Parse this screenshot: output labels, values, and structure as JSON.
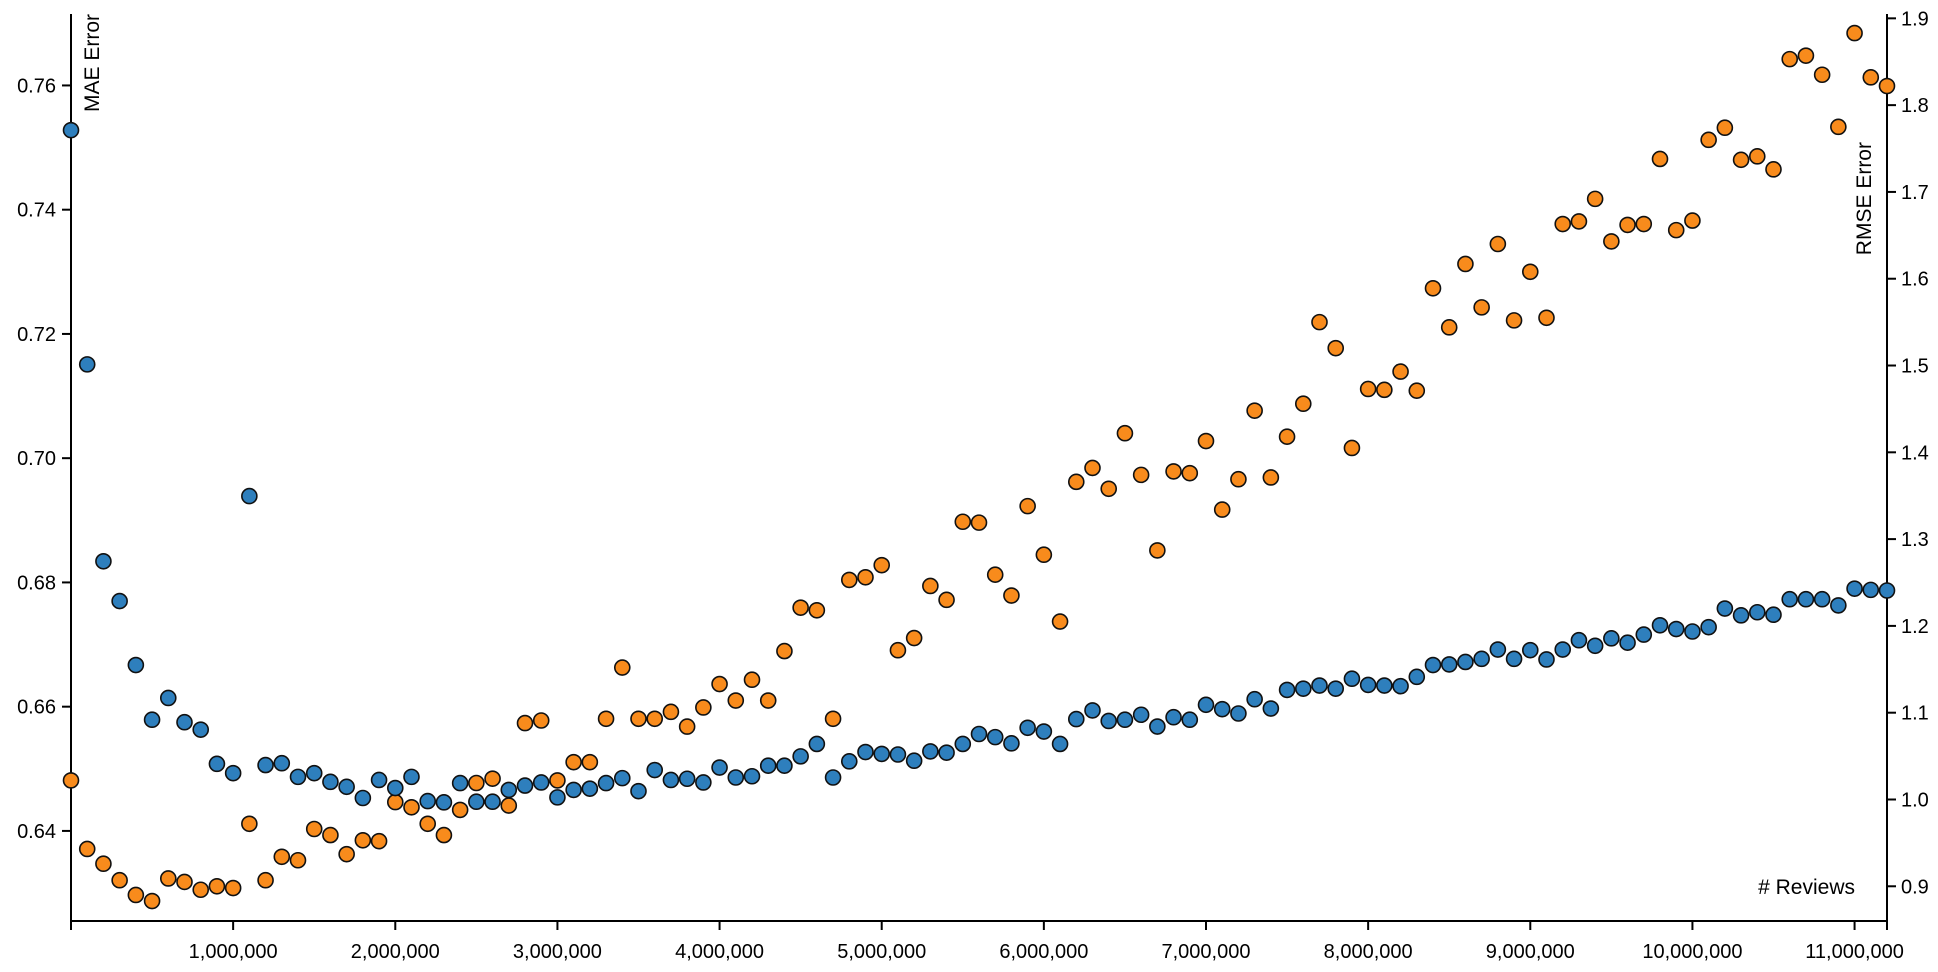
{
  "chart_data": {
    "type": "scatter",
    "xlabel": "# Reviews",
    "x_tick_labels": [
      "1,000,000",
      "2,000,000",
      "3,000,000",
      "4,000,000",
      "5,000,000",
      "6,000,000",
      "7,000,000",
      "8,000,000",
      "9,000,000",
      "10,000,000",
      "11,000,000"
    ],
    "x_ticks": [
      1000000,
      2000000,
      3000000,
      4000000,
      5000000,
      6000000,
      7000000,
      8000000,
      9000000,
      10000000,
      11000000
    ],
    "xlim": [
      0,
      11200000
    ],
    "y_left": {
      "label": "MAE Error",
      "lim": [
        0.6255,
        0.7715
      ],
      "ticks": [
        0.64,
        0.66,
        0.68,
        0.7,
        0.72,
        0.74,
        0.76
      ],
      "tick_labels": [
        "0.64",
        "0.66",
        "0.68",
        "0.70",
        "0.72",
        "0.74",
        "0.76"
      ]
    },
    "y_right": {
      "label": "RMSE Error",
      "lim": [
        0.86,
        1.905
      ],
      "ticks": [
        0.9,
        1.0,
        1.1,
        1.2,
        1.3,
        1.4,
        1.5,
        1.6,
        1.7,
        1.8,
        1.9
      ],
      "tick_labels": [
        "0.9",
        "1.0",
        "1.1",
        "1.2",
        "1.3",
        "1.4",
        "1.5",
        "1.6",
        "1.7",
        "1.8",
        "1.9"
      ]
    },
    "colors": {
      "mae": "#2e7fbd",
      "rmse": "#f88b1c"
    },
    "series": [
      {
        "key": "mae",
        "axis": "left",
        "x": [
          0,
          100000,
          200000,
          300000,
          400000,
          500000,
          600000,
          700000,
          800000,
          900000,
          1000000,
          1100000,
          1200000,
          1300000,
          1400000,
          1500000,
          1600000,
          1700000,
          1800000,
          1900000,
          2000000,
          2100000,
          2200000,
          2300000,
          2400000,
          2500000,
          2600000,
          2700000,
          2800000,
          2900000,
          3000000,
          3100000,
          3200000,
          3300000,
          3400000,
          3500000,
          3600000,
          3700000,
          3800000,
          3900000,
          4000000,
          4100000,
          4200000,
          4300000,
          4400000,
          4500000,
          4600000,
          4700000,
          4800000,
          4900000,
          5000000,
          5100000,
          5200000,
          5300000,
          5400000,
          5500000,
          5600000,
          5700000,
          5800000,
          5900000,
          6000000,
          6100000,
          6200000,
          6300000,
          6400000,
          6500000,
          6600000,
          6700000,
          6800000,
          6900000,
          7000000,
          7100000,
          7200000,
          7300000,
          7400000,
          7500000,
          7600000,
          7700000,
          7800000,
          7900000,
          8000000,
          8100000,
          8200000,
          8300000,
          8400000,
          8500000,
          8600000,
          8700000,
          8800000,
          8900000,
          9000000,
          9100000,
          9200000,
          9300000,
          9400000,
          9500000,
          9600000,
          9700000,
          9800000,
          9900000,
          10000000,
          10100000,
          10200000,
          10300000,
          10400000,
          10500000,
          10600000,
          10700000,
          10800000,
          10900000,
          11000000,
          11100000,
          11200000
        ],
        "y": [
          0.7528,
          0.7151,
          0.6834,
          0.677,
          0.6667,
          0.6579,
          0.6614,
          0.6575,
          0.6563,
          0.6508,
          0.6493,
          0.6939,
          0.6506,
          0.6509,
          0.6487,
          0.6493,
          0.6479,
          0.6471,
          0.6453,
          0.6482,
          0.6469,
          0.6487,
          0.6448,
          0.6446,
          0.6477,
          0.6447,
          0.6447,
          0.6466,
          0.6473,
          0.6478,
          0.6454,
          0.6466,
          0.6468,
          0.6477,
          0.6485,
          0.6464,
          0.6498,
          0.6482,
          0.6484,
          0.6478,
          0.6502,
          0.6486,
          0.6488,
          0.6505,
          0.6505,
          0.652,
          0.654,
          0.6486,
          0.6512,
          0.6527,
          0.6524,
          0.6523,
          0.6513,
          0.6528,
          0.6526,
          0.654,
          0.6556,
          0.6551,
          0.6541,
          0.6566,
          0.656,
          0.654,
          0.658,
          0.6594,
          0.6577,
          0.6579,
          0.6587,
          0.6568,
          0.6583,
          0.6579,
          0.6603,
          0.6596,
          0.6589,
          0.6612,
          0.6597,
          0.6627,
          0.6629,
          0.6634,
          0.6629,
          0.6645,
          0.6635,
          0.6634,
          0.6633,
          0.6648,
          0.6667,
          0.6668,
          0.6672,
          0.6677,
          0.6692,
          0.6677,
          0.6691,
          0.6676,
          0.6692,
          0.6707,
          0.6698,
          0.671,
          0.6703,
          0.6716,
          0.6731,
          0.6725,
          0.6721,
          0.6728,
          0.6758,
          0.6747,
          0.6752,
          0.6748,
          0.6773,
          0.6773,
          0.6773,
          0.6763,
          0.679,
          0.6788,
          0.6787
        ]
      },
      {
        "key": "rmse",
        "axis": "right",
        "x": [
          0,
          100000,
          200000,
          300000,
          400000,
          500000,
          600000,
          700000,
          800000,
          900000,
          1000000,
          1100000,
          1200000,
          1300000,
          1400000,
          1500000,
          1600000,
          1700000,
          1800000,
          1900000,
          2000000,
          2100000,
          2200000,
          2300000,
          2400000,
          2500000,
          2600000,
          2700000,
          2800000,
          2900000,
          3000000,
          3100000,
          3200000,
          3300000,
          3400000,
          3500000,
          3600000,
          3700000,
          3800000,
          3900000,
          4000000,
          4100000,
          4200000,
          4300000,
          4400000,
          4500000,
          4600000,
          4700000,
          4800000,
          4900000,
          5000000,
          5100000,
          5200000,
          5300000,
          5400000,
          5500000,
          5600000,
          5700000,
          5800000,
          5900000,
          6000000,
          6100000,
          6200000,
          6300000,
          6400000,
          6500000,
          6600000,
          6700000,
          6800000,
          6900000,
          7000000,
          7100000,
          7200000,
          7300000,
          7400000,
          7500000,
          7600000,
          7700000,
          7800000,
          7900000,
          8000000,
          8100000,
          8200000,
          8300000,
          8400000,
          8500000,
          8600000,
          8700000,
          8800000,
          8900000,
          9000000,
          9100000,
          9200000,
          9300000,
          9400000,
          9500000,
          9600000,
          9700000,
          9800000,
          9900000,
          10000000,
          10100000,
          10200000,
          10300000,
          10400000,
          10500000,
          10600000,
          10700000,
          10800000,
          10900000,
          11000000,
          11100000,
          11200000
        ],
        "y": [
          1.022,
          0.943,
          0.926,
          0.907,
          0.89,
          0.883,
          0.909,
          0.905,
          0.896,
          0.9,
          0.898,
          0.972,
          0.907,
          0.934,
          0.93,
          0.966,
          0.959,
          0.937,
          0.953,
          0.952,
          0.997,
          0.991,
          0.972,
          0.959,
          0.988,
          1.019,
          1.024,
          0.993,
          1.088,
          1.091,
          1.022,
          1.043,
          1.043,
          1.093,
          1.152,
          1.093,
          1.093,
          1.101,
          1.084,
          1.106,
          1.133,
          1.114,
          1.138,
          1.114,
          1.171,
          1.221,
          1.218,
          1.093,
          1.253,
          1.256,
          1.27,
          1.172,
          1.186,
          1.246,
          1.23,
          1.32,
          1.319,
          1.259,
          1.235,
          1.338,
          1.282,
          1.205,
          1.366,
          1.382,
          1.358,
          1.422,
          1.374,
          1.287,
          1.378,
          1.376,
          1.413,
          1.334,
          1.369,
          1.448,
          1.371,
          1.418,
          1.456,
          1.55,
          1.52,
          1.405,
          1.473,
          1.472,
          1.493,
          1.471,
          1.589,
          1.544,
          1.617,
          1.567,
          1.64,
          1.552,
          1.608,
          1.555,
          1.663,
          1.666,
          1.692,
          1.643,
          1.662,
          1.663,
          1.738,
          1.656,
          1.667,
          1.76,
          1.774,
          1.737,
          1.741,
          1.726,
          1.853,
          1.857,
          1.835,
          1.775,
          1.883,
          1.832,
          1.822
        ]
      }
    ]
  }
}
